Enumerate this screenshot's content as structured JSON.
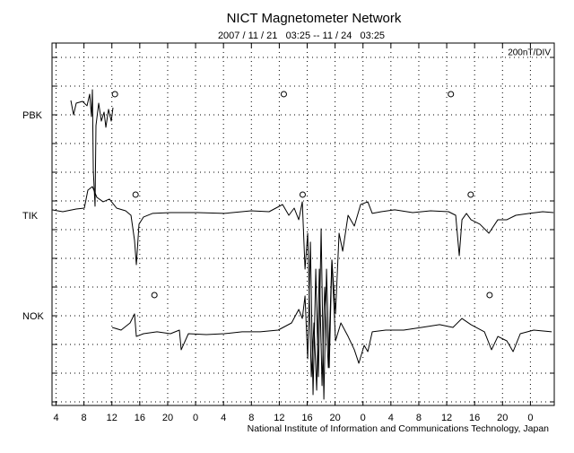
{
  "chart_data": {
    "type": "line",
    "title": "NICT Magnetometer Network",
    "subtitle": "2007 / 11 / 21   03:25 -- 11 / 24   03:25",
    "scale_label": "200nT/DIV",
    "footer": "National Institute of Information and Communications Technology, Japan",
    "xlim": [
      3.42,
      75.42
    ],
    "xticks": [
      4,
      8,
      12,
      16,
      20,
      {
        "value": 24,
        "label": "0"
      },
      {
        "value": 28,
        "label": "4"
      },
      {
        "value": 32,
        "label": "8"
      },
      {
        "value": 36,
        "label": "12"
      },
      {
        "value": 40,
        "label": "16"
      },
      {
        "value": 44,
        "label": "20"
      },
      {
        "value": 48,
        "label": "0"
      },
      {
        "value": 52,
        "label": "4"
      },
      {
        "value": 56,
        "label": "8"
      },
      {
        "value": 60,
        "label": "12"
      },
      {
        "value": 64,
        "label": "16"
      },
      {
        "value": 68,
        "label": "20"
      },
      {
        "value": 72,
        "label": "0"
      }
    ],
    "ylim": [
      -25,
      2500
    ],
    "ygrid": [
      0,
      200,
      400,
      600,
      800,
      1000,
      1200,
      1400,
      1600,
      1800,
      2000,
      2200,
      2400
    ],
    "grid": true,
    "series": [
      {
        "name": "PBK",
        "color": "#000000",
        "baseline": 1994,
        "x": [
          6.12,
          6.51,
          6.89,
          7.79,
          8.44,
          8.82,
          9.08,
          9.21,
          9.34,
          9.59,
          9.72,
          10.11,
          10.49,
          10.88,
          11.14,
          11.52,
          11.91,
          12.16
        ],
        "values": [
          2100,
          2000,
          2081,
          2094,
          2063,
          2144,
          1988,
          2175,
          1613,
          1363,
          1925,
          2081,
          1956,
          2019,
          1913,
          2038,
          1956,
          2050
        ],
        "markers_x": [
          12.44,
          36.65,
          60.6
        ],
        "markers_y": [
          2144,
          2144,
          2144
        ]
      },
      {
        "name": "TIK",
        "color": "#000000",
        "baseline": 1294,
        "x": [
          3.42,
          4.96,
          6.89,
          8.05,
          8.56,
          9.21,
          9.85,
          10.75,
          11.65,
          12.68,
          13.97,
          14.74,
          15.25,
          15.51,
          15.89,
          16.54,
          17.82,
          20.4,
          24.25,
          28.11,
          31.97,
          34.54,
          36.47,
          37.37,
          38.14,
          38.79,
          39.3,
          39.69,
          40.07,
          40.59,
          40.97,
          41.36,
          41.74,
          42.13,
          42.51,
          43.03,
          43.54,
          44.06,
          44.57,
          45.09,
          45.86,
          46.76,
          47.66,
          48.69,
          49.33,
          50.62,
          52.55,
          55.12,
          57.69,
          60.26,
          61.29,
          61.8,
          62.19,
          62.83,
          63.48,
          64.76,
          66.05,
          67.33,
          68.62,
          69.91,
          71.84,
          73.76,
          75.31
        ],
        "values": [
          1338,
          1325,
          1344,
          1350,
          1475,
          1500,
          1425,
          1394,
          1413,
          1350,
          1331,
          1300,
          1125,
          956,
          1238,
          1288,
          1313,
          1319,
          1319,
          1313,
          1331,
          1325,
          1375,
          1300,
          1350,
          1269,
          1394,
          925,
          1175,
          175,
          550,
          81,
          925,
          113,
          800,
          238,
          988,
          613,
          1175,
          1050,
          1300,
          1225,
          1375,
          1394,
          1313,
          1325,
          1338,
          1319,
          1331,
          1325,
          1300,
          1019,
          1269,
          1313,
          1269,
          1238,
          1175,
          1269,
          1269,
          1300,
          1313,
          1325,
          1319
        ],
        "markers_x": [
          15.4,
          39.35,
          63.44
        ],
        "markers_y": [
          1444,
          1444,
          1444
        ]
      },
      {
        "name": "NOK",
        "color": "#000000",
        "baseline": 594,
        "x": [
          12.04,
          13.32,
          14.61,
          15.25,
          15.51,
          16.54,
          18.47,
          20.4,
          21.68,
          21.94,
          22.97,
          25.54,
          28.11,
          30.68,
          33.26,
          35.83,
          37.76,
          38.79,
          39.3,
          39.69,
          40.07,
          40.46,
          40.84,
          41.23,
          41.61,
          42.0,
          42.39,
          42.77,
          43.16,
          43.54,
          44.06,
          44.83,
          45.86,
          46.76,
          47.4,
          48.17,
          48.69,
          49.33,
          51.26,
          53.83,
          56.4,
          58.98,
          60.9,
          62.19,
          63.48,
          65.41,
          66.43,
          67.33,
          68.62,
          69.52,
          70.55,
          72.48,
          75.05
        ],
        "values": [
          519,
          500,
          550,
          613,
          456,
          475,
          488,
          475,
          500,
          363,
          475,
          469,
          475,
          488,
          488,
          500,
          550,
          644,
          581,
          738,
          300,
          1113,
          50,
          925,
          175,
          1206,
          19,
          925,
          238,
          988,
          425,
          550,
          456,
          363,
          269,
          394,
          350,
          488,
          500,
          500,
          519,
          538,
          519,
          581,
          538,
          488,
          363,
          456,
          425,
          350,
          475,
          500,
          488
        ],
        "markers_x": [
          18.1,
          66.15
        ],
        "markers_y": [
          744,
          744
        ]
      }
    ]
  }
}
